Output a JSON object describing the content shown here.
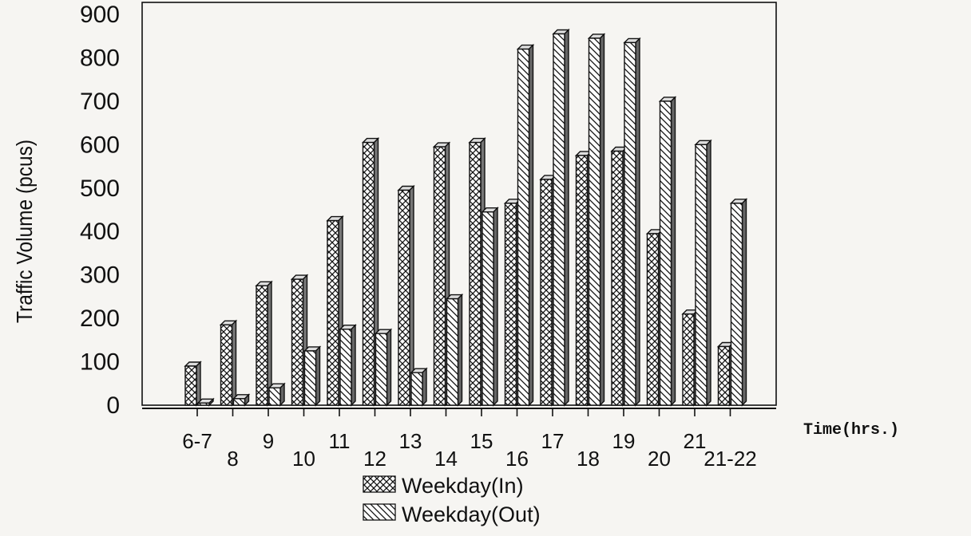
{
  "chart_data": {
    "type": "bar",
    "title": "",
    "xlabel": "Time(hrs.)",
    "ylabel": "Traffic Volume (pcus)",
    "ylim": [
      0,
      900
    ],
    "yticks": [
      0,
      100,
      200,
      300,
      400,
      500,
      600,
      700,
      800,
      900
    ],
    "grid": false,
    "legend_position": "bottom-center",
    "categories": [
      "6-7",
      "8",
      "9",
      "10",
      "11",
      "12",
      "13",
      "14",
      "15",
      "16",
      "17",
      "18",
      "19",
      "20",
      "21",
      "21-22"
    ],
    "series": [
      {
        "name": "Weekday(In)",
        "pattern": "crosshatch",
        "values": [
          90,
          185,
          275,
          290,
          425,
          605,
          495,
          595,
          605,
          465,
          520,
          575,
          585,
          395,
          210,
          135
        ]
      },
      {
        "name": "Weekday(Out)",
        "pattern": "diagonal",
        "values": [
          5,
          15,
          40,
          125,
          175,
          165,
          75,
          245,
          445,
          820,
          855,
          845,
          835,
          700,
          600,
          465
        ]
      }
    ]
  }
}
